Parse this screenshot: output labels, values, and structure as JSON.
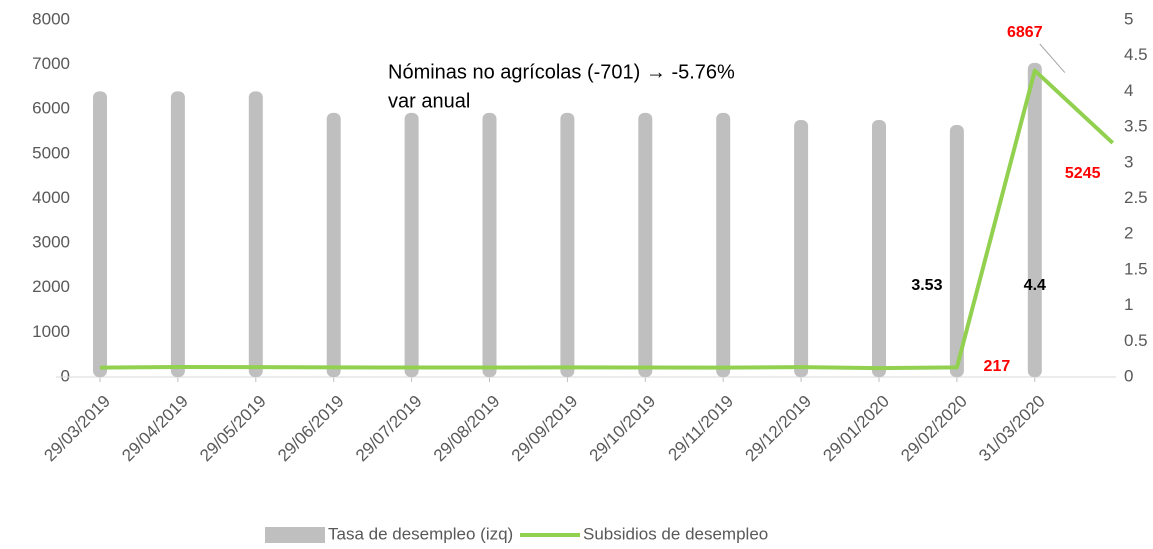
{
  "chart_data": {
    "type": "bar_line",
    "annotation": "Nóminas no agrícolas (-701) → -5.76%",
    "annotation_line2": "var anual",
    "categories": [
      "29/03/2019",
      "29/04/2019",
      "29/05/2019",
      "29/06/2019",
      "29/07/2019",
      "29/08/2019",
      "29/09/2019",
      "29/10/2019",
      "29/11/2019",
      "29/12/2019",
      "29/01/2020",
      "29/02/2020",
      "31/03/2020",
      null
    ],
    "series": [
      {
        "name": "Tasa de desempleo (izq)",
        "type": "bar",
        "axis": "y2",
        "color": "#bfbfbf",
        "values": [
          4.0,
          4.0,
          4.0,
          3.7,
          3.7,
          3.7,
          3.7,
          3.7,
          3.7,
          3.6,
          3.6,
          3.53,
          4.4,
          null
        ]
      },
      {
        "name": "Subsidios de desempleo",
        "type": "line",
        "axis": "y",
        "color": "#92d050",
        "values": [
          210,
          225,
          220,
          215,
          212,
          212,
          215,
          213,
          210,
          220,
          200,
          217,
          6867,
          5245
        ]
      }
    ],
    "ylim": [
      0,
      8000
    ],
    "yticks": [
      0,
      1000,
      2000,
      3000,
      4000,
      5000,
      6000,
      7000,
      8000
    ],
    "y2lim": [
      0,
      5
    ],
    "y2ticks": [
      0,
      0.5,
      1,
      1.5,
      2,
      2.5,
      3,
      3.5,
      4,
      4.5,
      5
    ],
    "grid": false,
    "legend": "bottom"
  }
}
